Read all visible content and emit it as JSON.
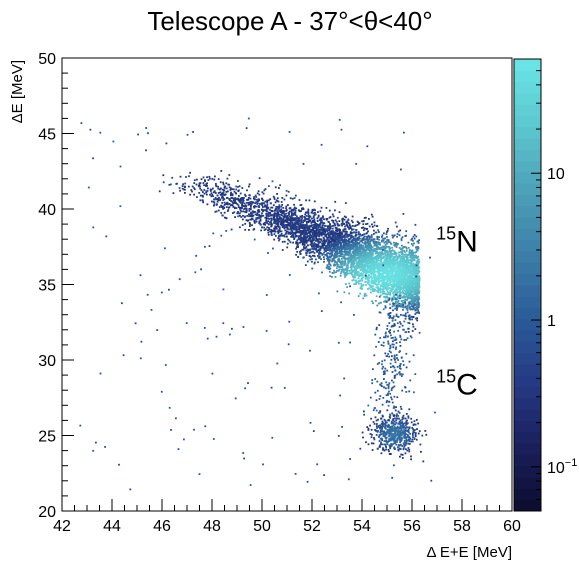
{
  "chart_data": {
    "type": "heatmap",
    "title": "Telescope A - 37°<θ<40°",
    "xlabel": "Δ E+E [MeV]",
    "ylabel": "ΔE [MeV]",
    "xlim": [
      42,
      60
    ],
    "ylim": [
      20,
      50
    ],
    "x_ticks": [
      "42",
      "44",
      "46",
      "48",
      "50",
      "52",
      "54",
      "56",
      "58",
      "60"
    ],
    "y_ticks": [
      "20",
      "25",
      "30",
      "35",
      "40",
      "45",
      "50"
    ],
    "z_scale": "log",
    "z_range": [
      0.05,
      60
    ],
    "z_ticks": [
      {
        "value": 0.1,
        "label": "10",
        "exponent": "−1"
      },
      {
        "value": 1,
        "label": "1",
        "exponent": ""
      },
      {
        "value": 10,
        "label": "10",
        "exponent": ""
      }
    ],
    "colormap": [
      "#0d0c2e",
      "#1a1f5c",
      "#253a84",
      "#2b5c99",
      "#3c7fa8",
      "#4da2b8",
      "#5cc8cf",
      "#6ae6e6"
    ],
    "grid": false,
    "annotations": [
      {
        "mass": "15",
        "symbol": "N",
        "x": 57.8,
        "y": 37.2
      },
      {
        "mass": "15",
        "symbol": "C",
        "x": 57.8,
        "y": 27.7
      }
    ],
    "series": [
      {
        "name": "15N",
        "type": "density-band",
        "ridge": [
          [
            45.5,
            42.2
          ],
          [
            47,
            41.6
          ],
          [
            49,
            40.4
          ],
          [
            51,
            39.1
          ],
          [
            53,
            37.6
          ],
          [
            55,
            36.0
          ],
          [
            56,
            35.2
          ]
        ],
        "peak": {
          "x": 55.0,
          "y": 35.6,
          "count": 50
        }
      },
      {
        "name": "15C",
        "type": "cluster",
        "center": {
          "x": 55.3,
          "y": 25.1
        },
        "sigma": [
          0.45,
          0.6
        ],
        "peak_count": 2
      },
      {
        "name": "tail",
        "type": "sparse",
        "from": {
          "x": 55.5,
          "y": 34.0
        },
        "to": {
          "x": 55.0,
          "y": 26.5
        }
      }
    ]
  }
}
